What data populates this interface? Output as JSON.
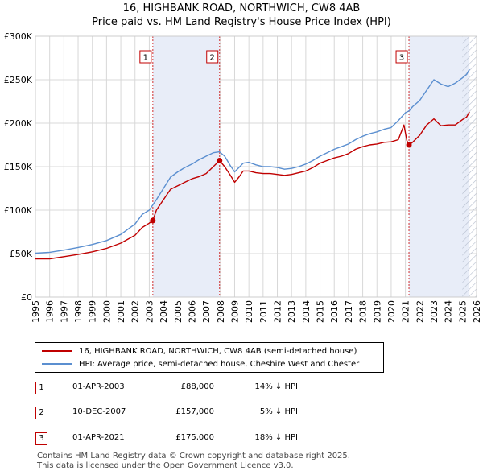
{
  "title": {
    "line1": "16, HIGHBANK ROAD, NORTHWICH, CW8 4AB",
    "line2": "Price paid vs. HM Land Registry's House Price Index (HPI)"
  },
  "chart_data": {
    "type": "line",
    "title": "Price paid vs. HM Land Registry's House Price Index (HPI)",
    "xlabel": "",
    "ylabel": "",
    "xlim": [
      1995,
      2026
    ],
    "ylim": [
      0,
      300000
    ],
    "y_ticks": [
      {
        "value": 0,
        "label": "£0"
      },
      {
        "value": 50000,
        "label": "£50K"
      },
      {
        "value": 100000,
        "label": "£100K"
      },
      {
        "value": 150000,
        "label": "£150K"
      },
      {
        "value": 200000,
        "label": "£200K"
      },
      {
        "value": 250000,
        "label": "£250K"
      },
      {
        "value": 300000,
        "label": "£300K"
      }
    ],
    "x_ticks": [
      "1995",
      "1996",
      "1997",
      "1998",
      "1999",
      "2000",
      "2001",
      "2002",
      "2003",
      "2004",
      "2005",
      "2006",
      "2007",
      "2008",
      "2009",
      "2010",
      "2011",
      "2012",
      "2013",
      "2014",
      "2015",
      "2016",
      "2017",
      "2018",
      "2019",
      "2020",
      "2021",
      "2022",
      "2023",
      "2024",
      "2025",
      "2026"
    ],
    "grid": true,
    "highlight_spans": [
      [
        2003.25,
        2007.94
      ],
      [
        2021.25,
        2025.5
      ]
    ],
    "forecast_start": 2025.0,
    "series": [
      {
        "name": "16, HIGHBANK ROAD, NORTHWICH, CW8 4AB (semi-detached house)",
        "color": "#c00000",
        "x": [
          1995.0,
          1996.0,
          1997.0,
          1998.0,
          1999.0,
          2000.0,
          2001.0,
          2002.0,
          2002.5,
          2003.0,
          2003.25,
          2003.5,
          2004.0,
          2004.5,
          2005.0,
          2005.5,
          2006.0,
          2006.5,
          2007.0,
          2007.5,
          2007.94,
          2008.3,
          2008.7,
          2009.0,
          2009.3,
          2009.6,
          2010.0,
          2010.5,
          2011.0,
          2011.5,
          2012.0,
          2012.5,
          2013.0,
          2013.5,
          2014.0,
          2014.5,
          2015.0,
          2015.5,
          2016.0,
          2016.5,
          2017.0,
          2017.5,
          2018.0,
          2018.5,
          2019.0,
          2019.5,
          2020.0,
          2020.5,
          2020.9,
          2021.1,
          2021.25,
          2021.5,
          2022.0,
          2022.5,
          2023.0,
          2023.5,
          2024.0,
          2024.5,
          2025.0,
          2025.3,
          2025.5
        ],
        "values": [
          44000,
          44000,
          46500,
          49000,
          52000,
          56000,
          62000,
          71000,
          80000,
          85000,
          88000,
          100000,
          112000,
          124000,
          128000,
          132000,
          136000,
          138500,
          142000,
          150000,
          157000,
          150000,
          140000,
          132000,
          138000,
          145000,
          145000,
          143000,
          142000,
          142000,
          141000,
          140000,
          141000,
          143000,
          145000,
          149000,
          154000,
          157000,
          160000,
          162000,
          165000,
          170000,
          173000,
          175000,
          176000,
          178000,
          178500,
          181000,
          198000,
          180000,
          175000,
          178000,
          186000,
          198000,
          205000,
          197000,
          198000,
          198000,
          204000,
          207000,
          213000
        ]
      },
      {
        "name": "HPI: Average price, semi-detached house, Cheshire West and Chester",
        "color": "#5b8fd0",
        "x": [
          1995.0,
          1996.0,
          1997.0,
          1998.0,
          1999.0,
          2000.0,
          2001.0,
          2002.0,
          2002.5,
          2003.0,
          2003.5,
          2004.0,
          2004.5,
          2005.0,
          2005.5,
          2006.0,
          2006.5,
          2007.0,
          2007.5,
          2007.94,
          2008.3,
          2008.7,
          2009.0,
          2009.3,
          2009.6,
          2010.0,
          2010.5,
          2011.0,
          2011.5,
          2012.0,
          2012.5,
          2013.0,
          2013.5,
          2014.0,
          2014.5,
          2015.0,
          2015.5,
          2016.0,
          2016.5,
          2017.0,
          2017.5,
          2018.0,
          2018.5,
          2019.0,
          2019.5,
          2020.0,
          2020.5,
          2021.0,
          2021.25,
          2021.5,
          2022.0,
          2022.5,
          2023.0,
          2023.5,
          2024.0,
          2024.5,
          2025.0,
          2025.3,
          2025.5
        ],
        "values": [
          50500,
          51500,
          54000,
          57000,
          60500,
          65000,
          72000,
          84000,
          95000,
          100000,
          112000,
          125000,
          138000,
          144000,
          149000,
          153000,
          158000,
          162000,
          166000,
          167000,
          162000,
          151000,
          144000,
          149000,
          154000,
          155000,
          152000,
          150000,
          150000,
          149000,
          147000,
          148000,
          150000,
          153000,
          157000,
          162000,
          166000,
          170000,
          173000,
          176000,
          181000,
          185000,
          188000,
          190000,
          193000,
          195000,
          203000,
          212000,
          214000,
          219000,
          226000,
          238000,
          250000,
          245000,
          242000,
          246000,
          252000,
          256000,
          262000
        ]
      }
    ],
    "sales": [
      {
        "label": "1",
        "x": 2003.25,
        "value": 88000
      },
      {
        "label": "2",
        "x": 2007.94,
        "value": 157000
      },
      {
        "label": "3",
        "x": 2021.25,
        "value": 175000
      }
    ]
  },
  "legend": {
    "property_label": "16, HIGHBANK ROAD, NORTHWICH, CW8 4AB (semi-detached house)",
    "hpi_label": "HPI: Average price, semi-detached house, Cheshire West and Chester"
  },
  "sales_table": [
    {
      "num": "1",
      "date": "01-APR-2003",
      "price": "£88,000",
      "hpi": "14% ↓ HPI"
    },
    {
      "num": "2",
      "date": "10-DEC-2007",
      "price": "£157,000",
      "hpi": "5% ↓ HPI"
    },
    {
      "num": "3",
      "date": "01-APR-2021",
      "price": "£175,000",
      "hpi": "18% ↓ HPI"
    }
  ],
  "footer": {
    "line1": "Contains HM Land Registry data © Crown copyright and database right 2025.",
    "line2": "This data is licensed under the Open Government Licence v3.0."
  },
  "colors": {
    "property_line": "#c00000",
    "hpi_line": "#5b8fd0",
    "highlight_fill": "#e8edf8",
    "hatch": "#aab4c8",
    "grid": "#d8d8d8",
    "marker_border": "#c00000"
  }
}
